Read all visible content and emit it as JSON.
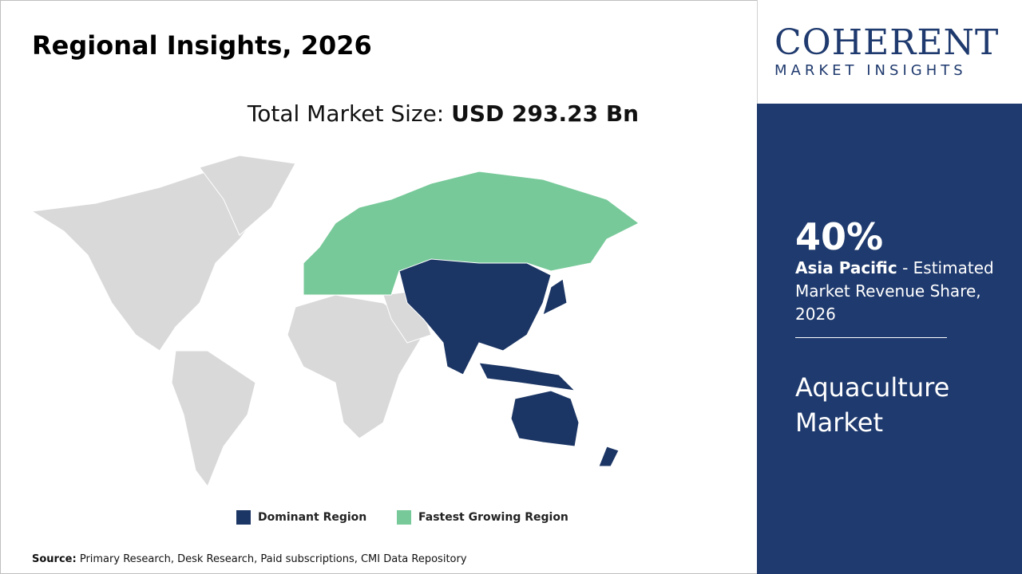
{
  "header": {
    "title": "Regional Insights, 2026"
  },
  "market_size": {
    "label": "Total Market Size:",
    "value": "USD 293.23 Bn"
  },
  "logo": {
    "name": "COHERENT",
    "tagline": "MARKET INSIGHTS"
  },
  "highlight": {
    "share": "40%",
    "region": "Asia Pacific",
    "description": "- Estimated Market Revenue Share, 2026",
    "market": "Aquaculture Market"
  },
  "legend": {
    "dominant": "Dominant Region",
    "fastest": "Fastest Growing Region"
  },
  "source": {
    "label": "Source:",
    "text": "Primary Research, Desk Research, Paid subscriptions, CMI Data Repository"
  }
}
